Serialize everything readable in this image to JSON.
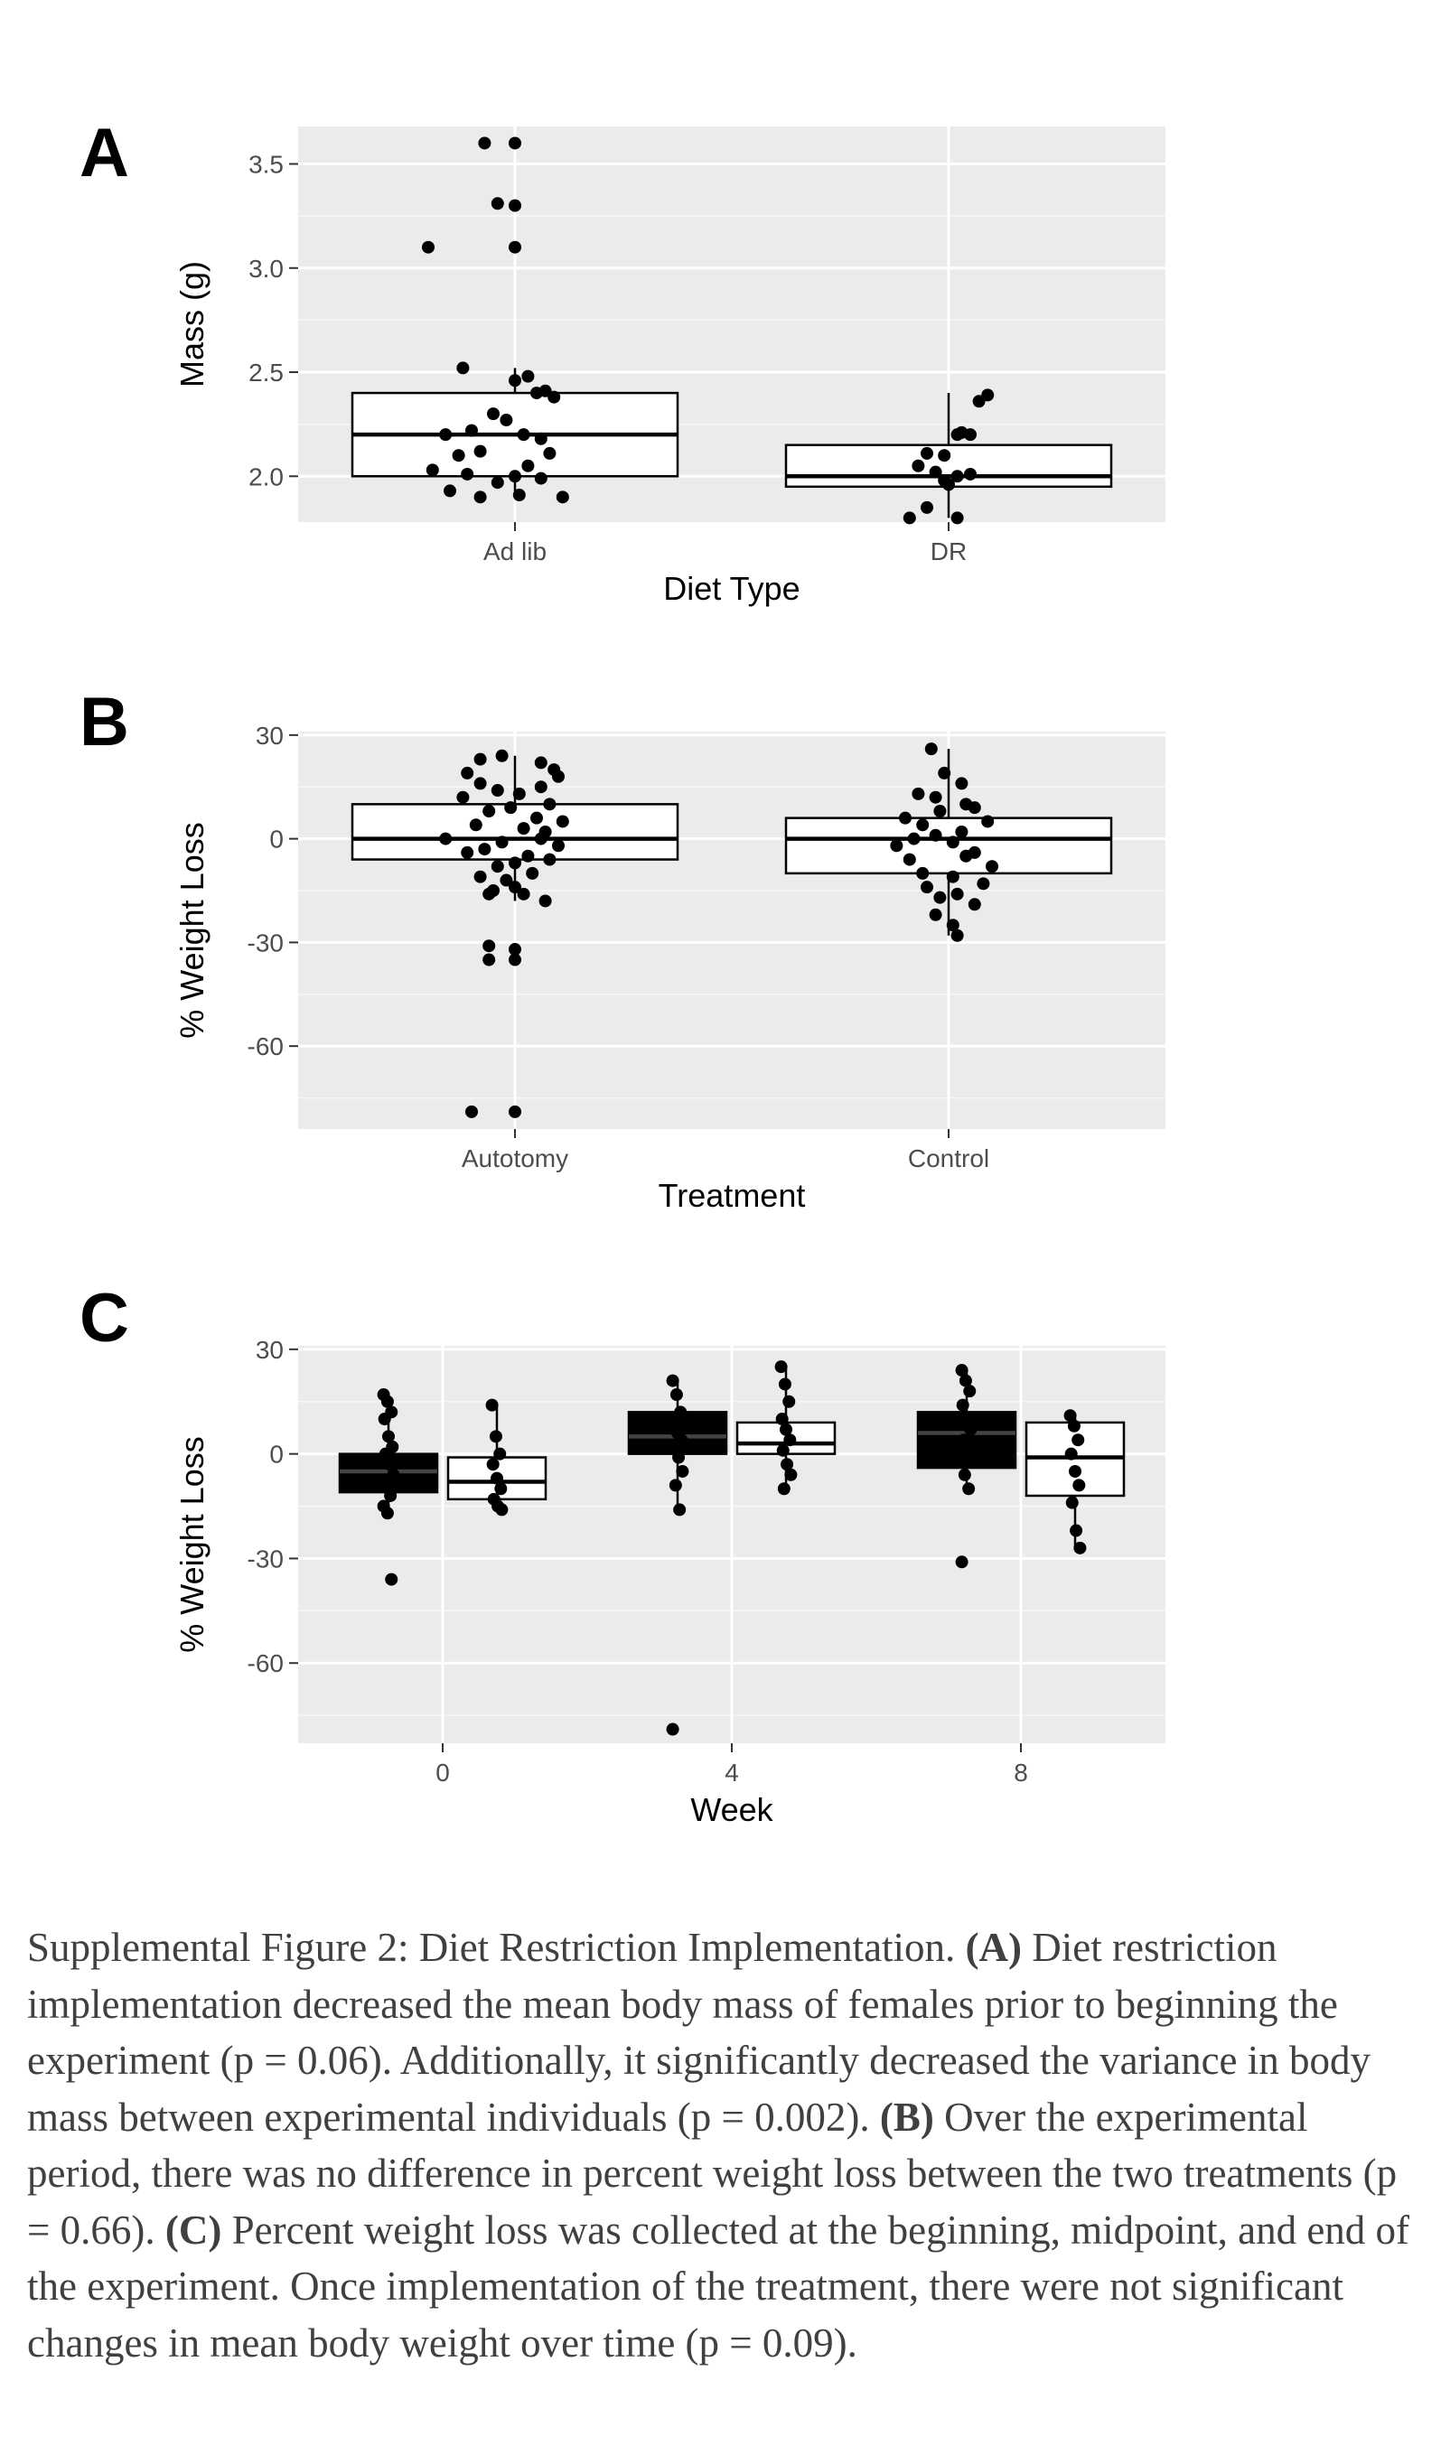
{
  "charts": [
    {
      "panel_label": "A",
      "chart_data": {
        "type": "box",
        "categories": [
          "Ad lib",
          "DR"
        ],
        "xlabel": "Diet Type",
        "ylabel": "Mass (g)",
        "ylim": [
          1.78,
          3.68
        ],
        "yticks": [
          2.0,
          2.5,
          3.0,
          3.5
        ],
        "ytick_labels": [
          "2.0",
          "2.5",
          "3.0",
          "3.5"
        ],
        "grid": true,
        "boxes": [
          {
            "category": "Ad lib",
            "q1": 2.0,
            "median": 2.2,
            "q3": 2.4,
            "whisker_low": 1.9,
            "whisker_high": 2.52
          },
          {
            "category": "DR",
            "q1": 1.95,
            "median": 2.0,
            "q3": 2.15,
            "whisker_low": 1.8,
            "whisker_high": 2.4
          }
        ],
        "points": [
          {
            "category": "Ad lib",
            "values": [
              3.6,
              3.6,
              3.31,
              3.3,
              3.1,
              3.1,
              2.52,
              2.48,
              2.46,
              2.41,
              2.4,
              2.38,
              2.3,
              2.27,
              2.22,
              2.2,
              2.2,
              2.18,
              2.12,
              2.11,
              2.1,
              2.05,
              2.03,
              2.01,
              2.0,
              1.99,
              1.97,
              1.93,
              1.91,
              1.9,
              1.9
            ],
            "offsets": [
              -0.07,
              0.0,
              -0.04,
              0.0,
              -0.2,
              0.0,
              -0.12,
              0.03,
              0.0,
              0.07,
              0.05,
              0.09,
              -0.05,
              -0.02,
              -0.1,
              -0.16,
              0.02,
              0.06,
              -0.08,
              0.08,
              -0.13,
              0.03,
              -0.19,
              -0.11,
              0.0,
              0.06,
              -0.04,
              -0.15,
              0.01,
              0.11,
              -0.08
            ]
          },
          {
            "category": "DR",
            "values": [
              2.39,
              2.36,
              2.21,
              2.2,
              2.2,
              2.11,
              2.1,
              2.05,
              2.02,
              2.01,
              2.0,
              1.98,
              1.96,
              1.85,
              1.8,
              1.8
            ],
            "offsets": [
              0.09,
              0.07,
              0.03,
              0.05,
              0.02,
              -0.05,
              -0.01,
              -0.07,
              -0.03,
              0.05,
              0.02,
              -0.01,
              0.0,
              -0.05,
              -0.09,
              0.02
            ]
          }
        ]
      }
    },
    {
      "panel_label": "B",
      "chart_data": {
        "type": "box",
        "categories": [
          "Autotomy",
          "Control"
        ],
        "xlabel": "Treatment",
        "ylabel": "% Weight Loss",
        "ylim": [
          -84,
          31
        ],
        "yticks": [
          30,
          0,
          -30,
          -60
        ],
        "ytick_labels": [
          "30",
          "0",
          "-30",
          "-60"
        ],
        "grid": true,
        "boxes": [
          {
            "category": "Autotomy",
            "q1": -6,
            "median": 0,
            "q3": 10,
            "whisker_low": -18,
            "whisker_high": 24
          },
          {
            "category": "Control",
            "q1": -10,
            "median": 0,
            "q3": 6,
            "whisker_low": -28,
            "whisker_high": 26
          }
        ],
        "points": [
          {
            "category": "Autotomy",
            "values": [
              24,
              23,
              22,
              20,
              19,
              18,
              16,
              15,
              14,
              13,
              12,
              10,
              9,
              8,
              6,
              5,
              4,
              3,
              2,
              0,
              0,
              -1,
              -2,
              -3,
              -4,
              -5,
              -6,
              -7,
              -8,
              -10,
              -11,
              -12,
              -14,
              -15,
              -16,
              -16,
              -18,
              -31,
              -32,
              -35,
              -35,
              -79,
              -79
            ],
            "offsets": [
              -0.03,
              -0.08,
              0.06,
              0.09,
              -0.11,
              0.1,
              -0.08,
              0.06,
              -0.04,
              0.01,
              -0.12,
              0.08,
              -0.01,
              -0.06,
              0.05,
              0.11,
              -0.09,
              0.02,
              0.07,
              -0.16,
              0.06,
              -0.03,
              0.1,
              -0.07,
              -0.11,
              0.03,
              0.08,
              0.0,
              -0.04,
              0.04,
              -0.08,
              -0.02,
              0.0,
              -0.05,
              -0.06,
              0.02,
              0.07,
              -0.06,
              0.0,
              -0.06,
              0.0,
              -0.1,
              0.0
            ]
          },
          {
            "category": "Control",
            "values": [
              26,
              19,
              16,
              13,
              12,
              10,
              9,
              8,
              6,
              5,
              4,
              2,
              1,
              0,
              -1,
              -2,
              -4,
              -5,
              -6,
              -8,
              -10,
              -11,
              -13,
              -14,
              -16,
              -17,
              -19,
              -22,
              -25,
              -28
            ],
            "offsets": [
              -0.04,
              -0.01,
              0.03,
              -0.07,
              -0.03,
              0.04,
              0.06,
              -0.02,
              -0.1,
              0.09,
              -0.06,
              0.03,
              -0.03,
              -0.08,
              0.01,
              -0.12,
              0.06,
              0.04,
              -0.09,
              0.1,
              -0.06,
              0.01,
              0.08,
              -0.05,
              0.02,
              -0.02,
              0.06,
              -0.03,
              0.01,
              0.02
            ]
          }
        ]
      }
    },
    {
      "panel_label": "C",
      "chart_data": {
        "type": "box",
        "categories": [
          "0",
          "4",
          "8"
        ],
        "xlabel": "Week",
        "ylabel": "% Weight Loss",
        "ylim": [
          -83,
          31
        ],
        "yticks": [
          30,
          0,
          -30,
          -60
        ],
        "ytick_labels": [
          "30",
          "0",
          "-30",
          "-60"
        ],
        "grid": true,
        "series": [
          {
            "fill": "#000000",
            "stroke": "#000000",
            "boxes": [
              {
                "category": "0",
                "q1": -11,
                "median": -5,
                "q3": 0,
                "whisker_low": -17,
                "whisker_high": 17
              },
              {
                "category": "4",
                "q1": 0,
                "median": 5,
                "q3": 12,
                "whisker_low": -16,
                "whisker_high": 21
              },
              {
                "category": "8",
                "q1": -4,
                "median": 6,
                "q3": 12,
                "whisker_low": -10,
                "whisker_high": 24
              }
            ]
          },
          {
            "fill": "#ffffff",
            "stroke": "#000000",
            "boxes": [
              {
                "category": "0",
                "q1": -13,
                "median": -8,
                "q3": -1,
                "whisker_low": -16,
                "whisker_high": 14
              },
              {
                "category": "4",
                "q1": 0,
                "median": 3,
                "q3": 9,
                "whisker_low": -10,
                "whisker_high": 25
              },
              {
                "category": "8",
                "q1": -12,
                "median": -1,
                "q3": 9,
                "whisker_low": -27,
                "whisker_high": 11
              }
            ]
          }
        ],
        "points": [
          {
            "category": "0",
            "series": 0,
            "values": [
              17,
              15,
              12,
              10,
              5,
              2,
              0,
              -3,
              -6,
              -9,
              -12,
              -15,
              -17,
              -36
            ]
          },
          {
            "category": "0",
            "series": 1,
            "values": [
              14,
              5,
              0,
              -3,
              -7,
              -10,
              -13,
              -15,
              -16
            ]
          },
          {
            "category": "4",
            "series": 0,
            "values": [
              21,
              17,
              12,
              8,
              6,
              4,
              2,
              -1,
              -5,
              -9,
              -16,
              -79
            ]
          },
          {
            "category": "4",
            "series": 1,
            "values": [
              25,
              20,
              15,
              10,
              7,
              4,
              1,
              -3,
              -6,
              -10
            ]
          },
          {
            "category": "8",
            "series": 0,
            "values": [
              24,
              21,
              18,
              14,
              10,
              7,
              4,
              1,
              -2,
              -6,
              -10,
              -31
            ]
          },
          {
            "category": "8",
            "series": 1,
            "values": [
              11,
              8,
              4,
              0,
              -5,
              -9,
              -14,
              -22,
              -27
            ]
          }
        ]
      }
    }
  ],
  "caption": {
    "lead": "Supplemental Figure 2: Diet Restriction Implementation. ",
    "a_label": "(A)",
    "a_text": " Diet restriction implementation decreased the mean body mass of females prior to beginning the experiment (p = 0.06). Additionally, it significantly decreased the variance in body mass between experimental individuals (p = 0.002). ",
    "b_label": "(B)",
    "b_text": " Over the experimental period, there was no difference in percent weight loss between the two treatments (p = 0.66). ",
    "c_label": "(C)",
    "c_text": " Percent weight loss was collected at the beginning, midpoint, and end of the experiment. Once implementation of the treatment, there were not significant changes in mean body weight over time (p = 0.09)."
  }
}
